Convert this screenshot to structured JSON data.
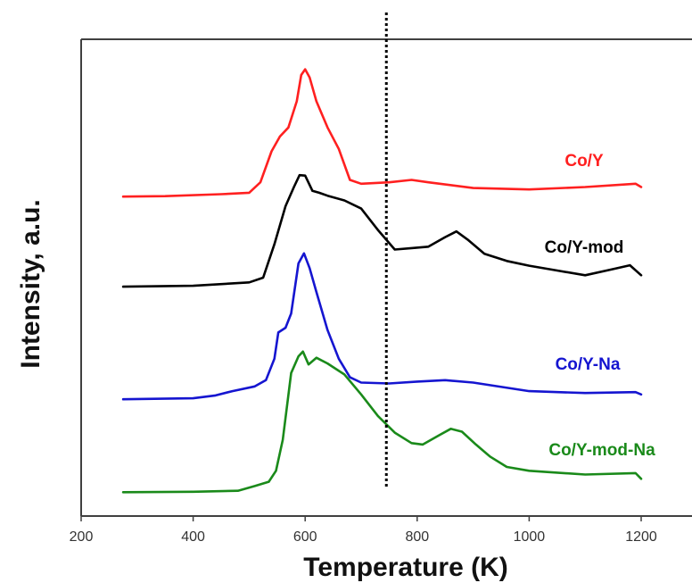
{
  "chart_data": {
    "type": "line",
    "title": "",
    "xlabel": "Temperature (K)",
    "ylabel": "Intensity, a.u.",
    "xlim": [
      200,
      1300
    ],
    "xticks": [
      200,
      400,
      600,
      800,
      1000,
      1200
    ],
    "y_ticks_shown": false,
    "grid": false,
    "legend": "inline labels to the right of each curve",
    "reference_line": {
      "x": 745,
      "style": "dotted",
      "color": "#000000"
    },
    "series": [
      {
        "name": "Co/Y",
        "color": "#ff2020",
        "points": [
          [
            275,
            0.67
          ],
          [
            350,
            0.671
          ],
          [
            450,
            0.675
          ],
          [
            500,
            0.678
          ],
          [
            520,
            0.7
          ],
          [
            540,
            0.765
          ],
          [
            555,
            0.796
          ],
          [
            570,
            0.815
          ],
          [
            585,
            0.87
          ],
          [
            593,
            0.925
          ],
          [
            600,
            0.937
          ],
          [
            608,
            0.92
          ],
          [
            620,
            0.87
          ],
          [
            640,
            0.815
          ],
          [
            660,
            0.77
          ],
          [
            680,
            0.705
          ],
          [
            700,
            0.697
          ],
          [
            750,
            0.7
          ],
          [
            790,
            0.705
          ],
          [
            820,
            0.7
          ],
          [
            900,
            0.688
          ],
          [
            1000,
            0.685
          ],
          [
            1100,
            0.69
          ],
          [
            1190,
            0.697
          ],
          [
            1200,
            0.69
          ]
        ]
      },
      {
        "name": "Co/Y-mod",
        "color": "#000000",
        "points": [
          [
            275,
            0.481
          ],
          [
            400,
            0.483
          ],
          [
            500,
            0.49
          ],
          [
            525,
            0.5
          ],
          [
            545,
            0.57
          ],
          [
            565,
            0.65
          ],
          [
            580,
            0.69
          ],
          [
            590,
            0.715
          ],
          [
            600,
            0.714
          ],
          [
            613,
            0.682
          ],
          [
            625,
            0.678
          ],
          [
            640,
            0.672
          ],
          [
            670,
            0.662
          ],
          [
            700,
            0.645
          ],
          [
            730,
            0.6
          ],
          [
            760,
            0.559
          ],
          [
            790,
            0.562
          ],
          [
            820,
            0.565
          ],
          [
            850,
            0.585
          ],
          [
            870,
            0.597
          ],
          [
            890,
            0.58
          ],
          [
            920,
            0.55
          ],
          [
            960,
            0.535
          ],
          [
            1000,
            0.525
          ],
          [
            1050,
            0.515
          ],
          [
            1100,
            0.505
          ],
          [
            1150,
            0.518
          ],
          [
            1180,
            0.526
          ],
          [
            1200,
            0.505
          ]
        ]
      },
      {
        "name": "Co/Y-Na",
        "color": "#1515d0",
        "points": [
          [
            275,
            0.245
          ],
          [
            400,
            0.247
          ],
          [
            440,
            0.253
          ],
          [
            470,
            0.262
          ],
          [
            510,
            0.272
          ],
          [
            530,
            0.285
          ],
          [
            545,
            0.33
          ],
          [
            552,
            0.385
          ],
          [
            565,
            0.395
          ],
          [
            575,
            0.425
          ],
          [
            588,
            0.53
          ],
          [
            598,
            0.551
          ],
          [
            608,
            0.52
          ],
          [
            620,
            0.47
          ],
          [
            640,
            0.39
          ],
          [
            660,
            0.33
          ],
          [
            680,
            0.291
          ],
          [
            700,
            0.28
          ],
          [
            750,
            0.278
          ],
          [
            800,
            0.282
          ],
          [
            850,
            0.285
          ],
          [
            900,
            0.28
          ],
          [
            1000,
            0.262
          ],
          [
            1100,
            0.258
          ],
          [
            1190,
            0.26
          ],
          [
            1200,
            0.255
          ]
        ]
      },
      {
        "name": "Co/Y-mod-Na",
        "color": "#1a8a1a",
        "points": [
          [
            275,
            0.05
          ],
          [
            400,
            0.051
          ],
          [
            480,
            0.053
          ],
          [
            510,
            0.063
          ],
          [
            535,
            0.072
          ],
          [
            548,
            0.095
          ],
          [
            560,
            0.16
          ],
          [
            575,
            0.3
          ],
          [
            588,
            0.335
          ],
          [
            596,
            0.345
          ],
          [
            606,
            0.318
          ],
          [
            620,
            0.332
          ],
          [
            640,
            0.32
          ],
          [
            670,
            0.297
          ],
          [
            700,
            0.255
          ],
          [
            730,
            0.21
          ],
          [
            760,
            0.175
          ],
          [
            790,
            0.153
          ],
          [
            810,
            0.15
          ],
          [
            840,
            0.17
          ],
          [
            860,
            0.183
          ],
          [
            880,
            0.177
          ],
          [
            905,
            0.15
          ],
          [
            930,
            0.125
          ],
          [
            960,
            0.103
          ],
          [
            1000,
            0.095
          ],
          [
            1100,
            0.087
          ],
          [
            1190,
            0.09
          ],
          [
            1200,
            0.078
          ]
        ]
      }
    ]
  }
}
